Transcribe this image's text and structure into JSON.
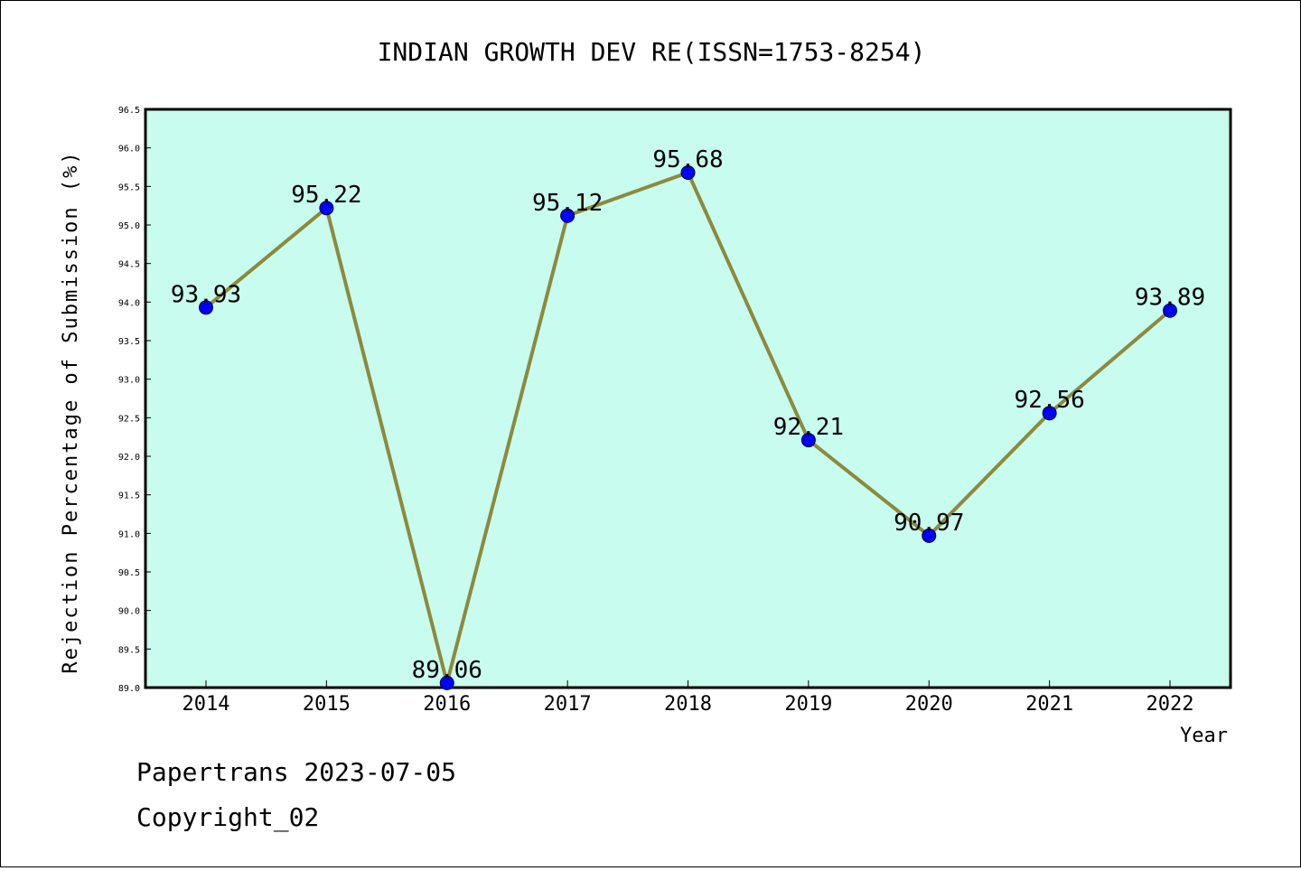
{
  "chart_data": {
    "type": "line",
    "title": "INDIAN GROWTH DEV RE(ISSN=1753-8254)",
    "xlabel": "Year",
    "ylabel": "Rejection Percentage of Submission (%)",
    "categories": [
      "2014",
      "2015",
      "2016",
      "2017",
      "2018",
      "2019",
      "2020",
      "2021",
      "2022"
    ],
    "series": [
      {
        "values": [
          93.93,
          95.22,
          89.06,
          95.12,
          95.68,
          92.21,
          90.97,
          92.56,
          93.89
        ],
        "data_labels": [
          "93.93",
          "95.22",
          "89.06",
          "95.12",
          "95.68",
          "92.21",
          "90.97",
          "92.56",
          "93.89"
        ]
      }
    ],
    "ylim": [
      89.0,
      96.5
    ],
    "yticks": [
      "89.0",
      "89.5",
      "90.0",
      "90.5",
      "91.0",
      "91.5",
      "92.0",
      "92.5",
      "93.0",
      "93.5",
      "94.0",
      "94.5",
      "95.0",
      "95.5",
      "96.0",
      "96.5"
    ],
    "grid": false,
    "colors": {
      "plot_background": "#c8fcee",
      "line": "#8c8a3c",
      "marker": "#0000ff"
    }
  },
  "footer": {
    "line1": "Papertrans 2023-07-05",
    "line2": "Copyright_02"
  }
}
